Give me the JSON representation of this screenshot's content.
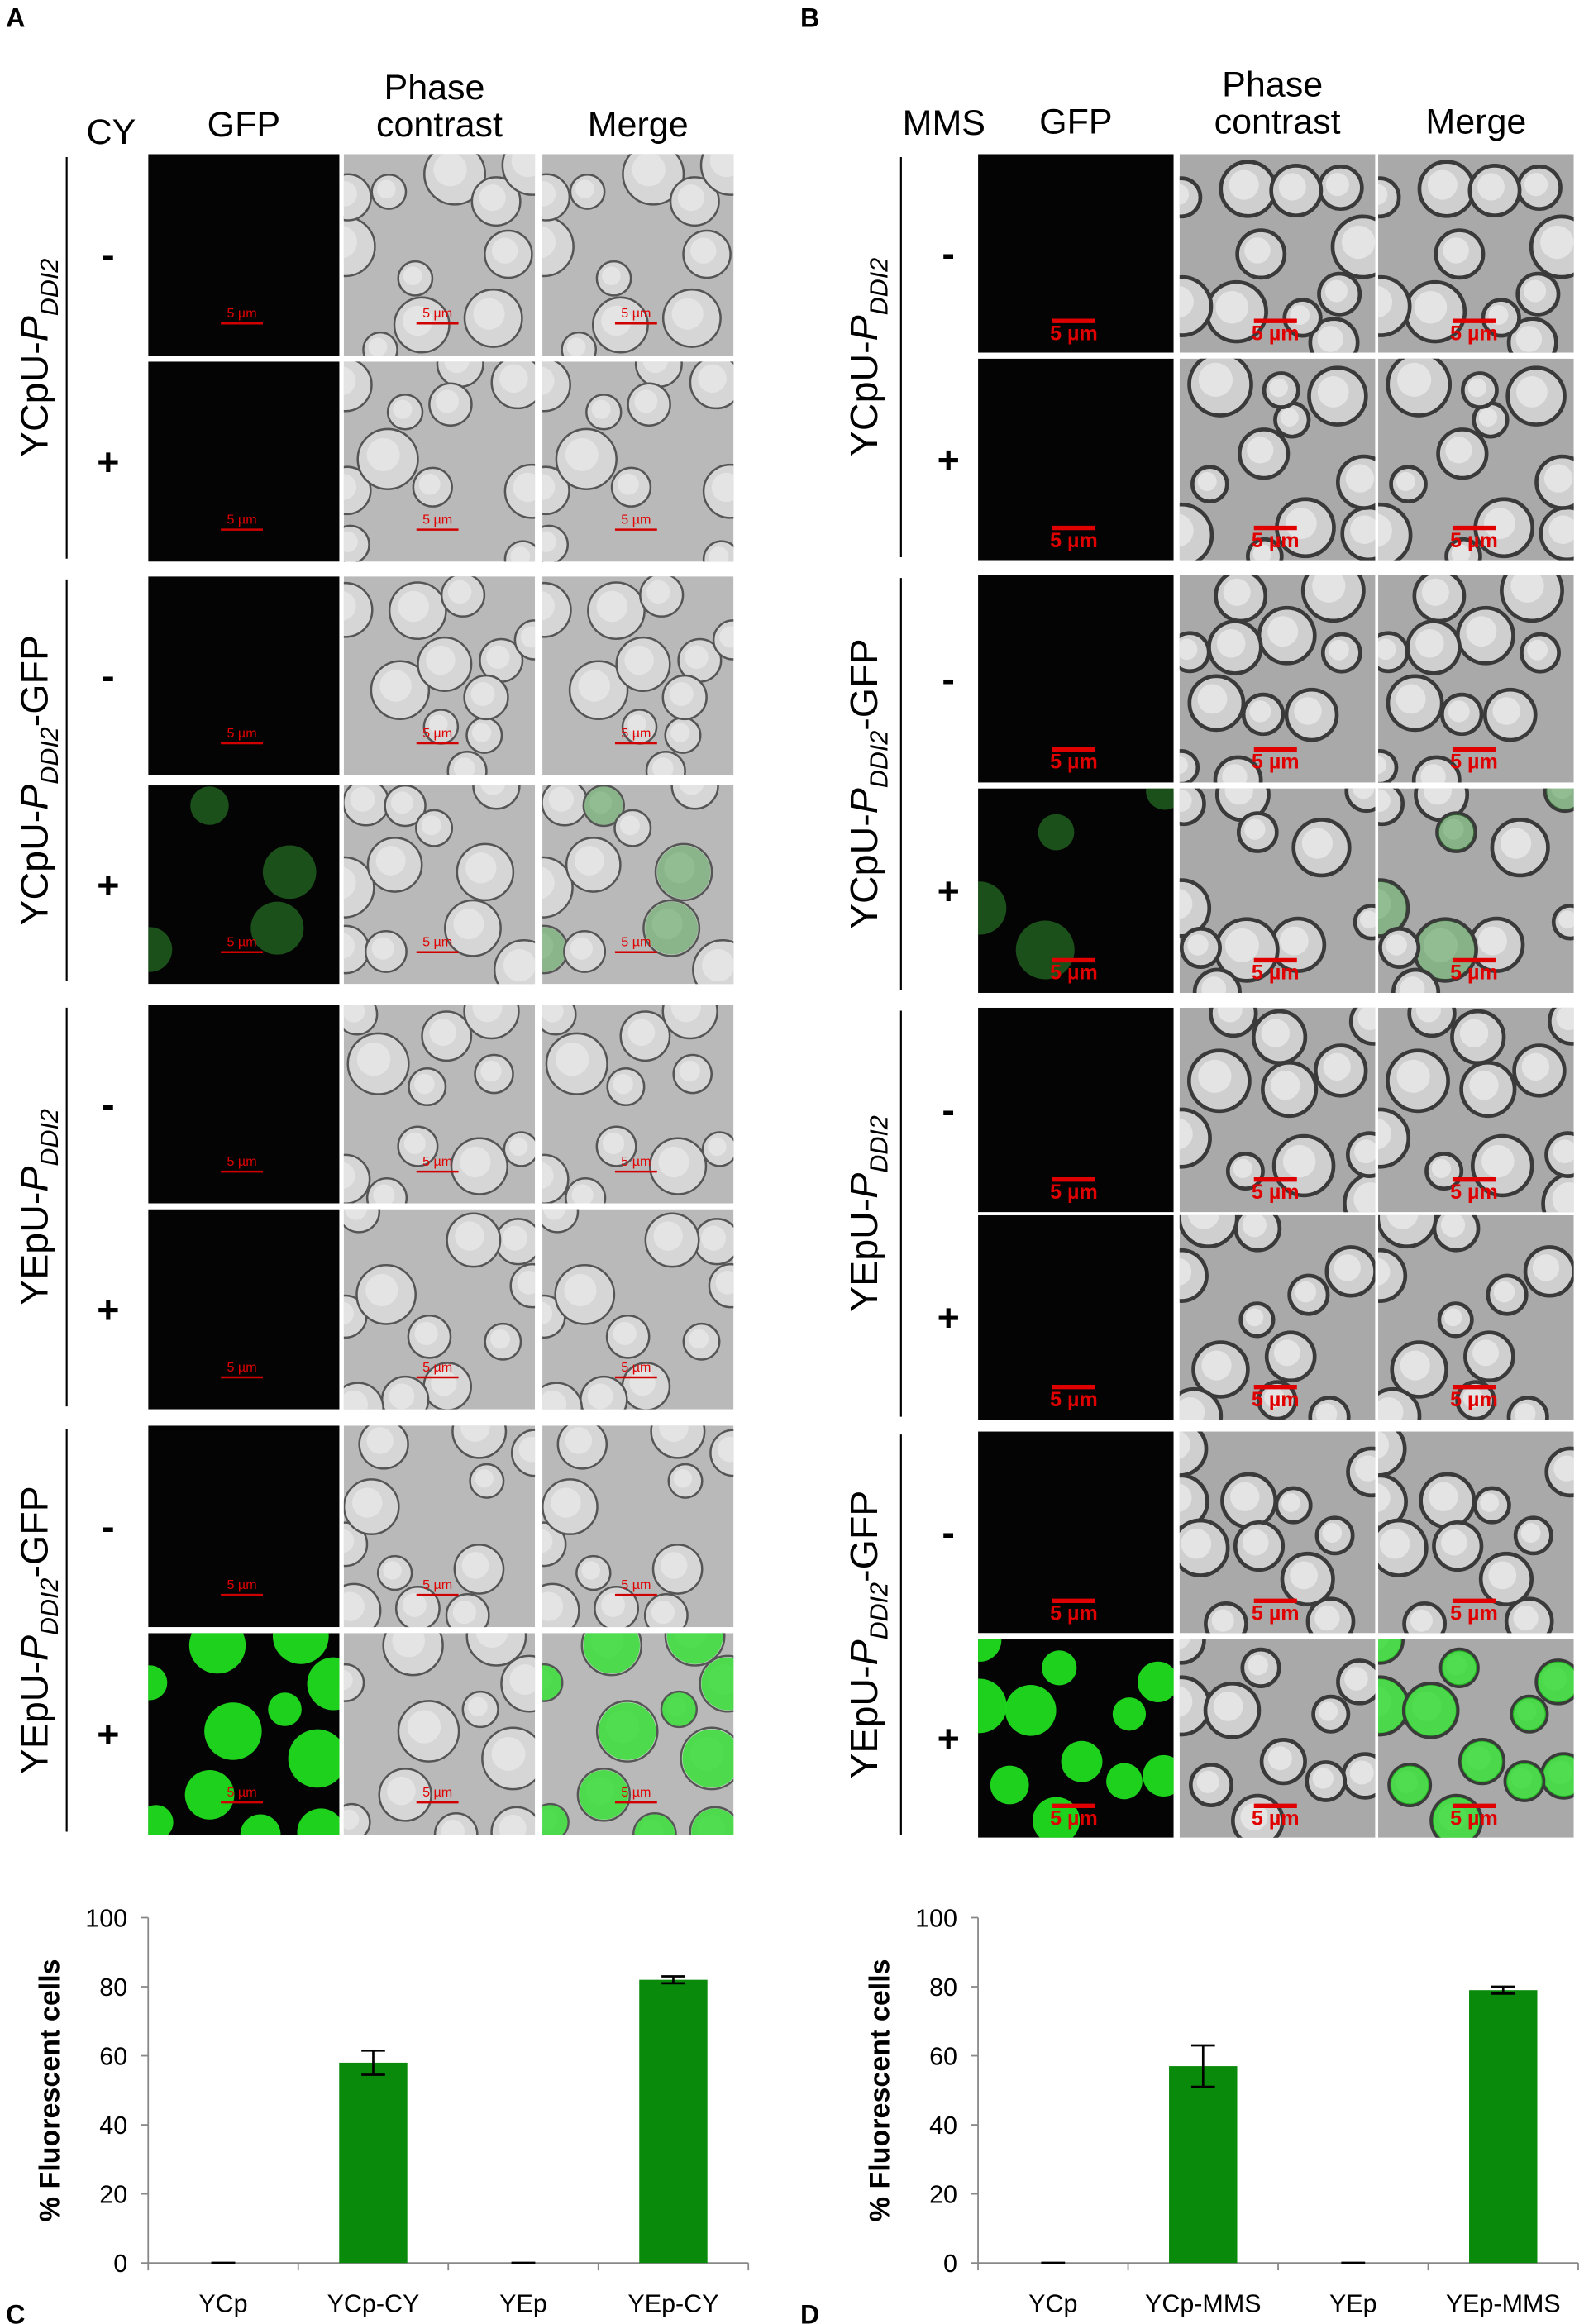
{
  "panels": [
    {
      "letter": "A",
      "condition": "CY",
      "columns": [
        "GFP",
        "Phase contrast",
        "Merge"
      ],
      "scale_bar": "5 µm",
      "treatments": [
        "-",
        "+"
      ],
      "constructs": [
        {
          "name": "YCpU-",
          "promoter": "P",
          "subscript": "DDI2"
        },
        {
          "name": "YCpU-",
          "promoter": "P",
          "subscript": "DDI2",
          "suffix": "-GFP"
        },
        {
          "name": "YEpU-",
          "promoter": "P",
          "subscript": "DDI2"
        },
        {
          "name": "YEpU-",
          "promoter": "P",
          "subscript": "DDI2",
          "suffix": "-GFP"
        }
      ]
    },
    {
      "letter": "B",
      "condition": "MMS",
      "columns": [
        "GFP",
        "Phase contrast",
        "Merge"
      ],
      "scale_bar": "5 µm",
      "treatments": [
        "-",
        "+"
      ],
      "constructs": [
        {
          "name": "YCpU-",
          "promoter": "P",
          "subscript": "DDI2"
        },
        {
          "name": "YCpU-",
          "promoter": "P",
          "subscript": "DDI2",
          "suffix": "-GFP"
        },
        {
          "name": "YEpU-",
          "promoter": "P",
          "subscript": "DDI2"
        },
        {
          "name": "YEpU-",
          "promoter": "P",
          "subscript": "DDI2",
          "suffix": "-GFP"
        }
      ]
    }
  ],
  "chart_data": [
    {
      "type": "bar",
      "panel": "C",
      "ylabel": "% Fluorescent cells",
      "categories": [
        "YCp",
        "YCp-CY",
        "YEp",
        "YEp-CY"
      ],
      "values": [
        0,
        58,
        0,
        82
      ],
      "errors": [
        0,
        3.5,
        0,
        1
      ],
      "color": "#0a8a0a",
      "ylim": [
        0,
        100
      ],
      "yticks": [
        0,
        20,
        40,
        60,
        80,
        100
      ]
    },
    {
      "type": "bar",
      "panel": "D",
      "ylabel": "% Fluorescent cells",
      "categories": [
        "YCp",
        "YCp-MMS",
        "YEp",
        "YEp-MMS"
      ],
      "values": [
        0,
        57,
        0,
        79
      ],
      "errors": [
        0,
        6,
        0,
        1
      ],
      "color": "#0a8a0a",
      "ylim": [
        0,
        100
      ],
      "yticks": [
        0,
        20,
        40,
        60,
        80,
        100
      ]
    }
  ]
}
